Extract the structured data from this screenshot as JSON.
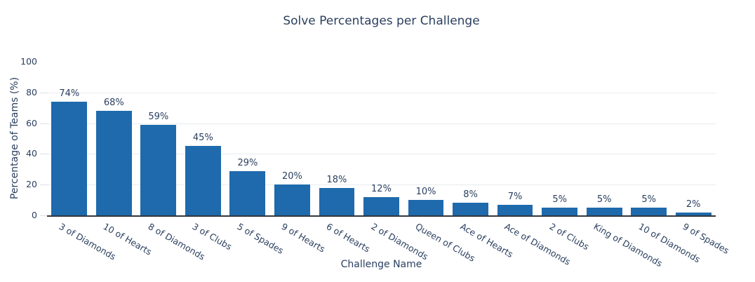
{
  "chart_data": {
    "type": "bar",
    "title": "Solve Percentages per Challenge",
    "xlabel": "Challenge Name",
    "ylabel": "Percentage of Teams (%)",
    "categories": [
      "3 of Diamonds",
      "10 of Hearts",
      "8 of Diamonds",
      "3 of Clubs",
      "5 of Spades",
      "9 of Hearts",
      "6 of Hearts",
      "2 of Diamonds",
      "Queen of Clubs",
      "Ace of Hearts",
      "Ace of Diamonds",
      "2 of Clubs",
      "King of Diamonds",
      "10 of Diamonds",
      "9 of Spades"
    ],
    "values": [
      74,
      68,
      59,
      45,
      29,
      20,
      18,
      12,
      10,
      8,
      7,
      5,
      5,
      5,
      2
    ],
    "bar_labels": [
      "74%",
      "68%",
      "59%",
      "45%",
      "29%",
      "20%",
      "18%",
      "12%",
      "10%",
      "8%",
      "7%",
      "5%",
      "5%",
      "5%",
      "2%"
    ],
    "yticks": [
      0,
      20,
      40,
      60,
      80,
      100
    ],
    "ylim": [
      0,
      100
    ],
    "grid": true,
    "legend": "none",
    "tick_angle": 30
  },
  "colors": {
    "bar": "#1e6aad",
    "text": "#2a3f5f",
    "grid": "#e8eaee",
    "tick_mark": "#dde0e5",
    "axis_line": "#30373f",
    "background": "#ffffff"
  }
}
